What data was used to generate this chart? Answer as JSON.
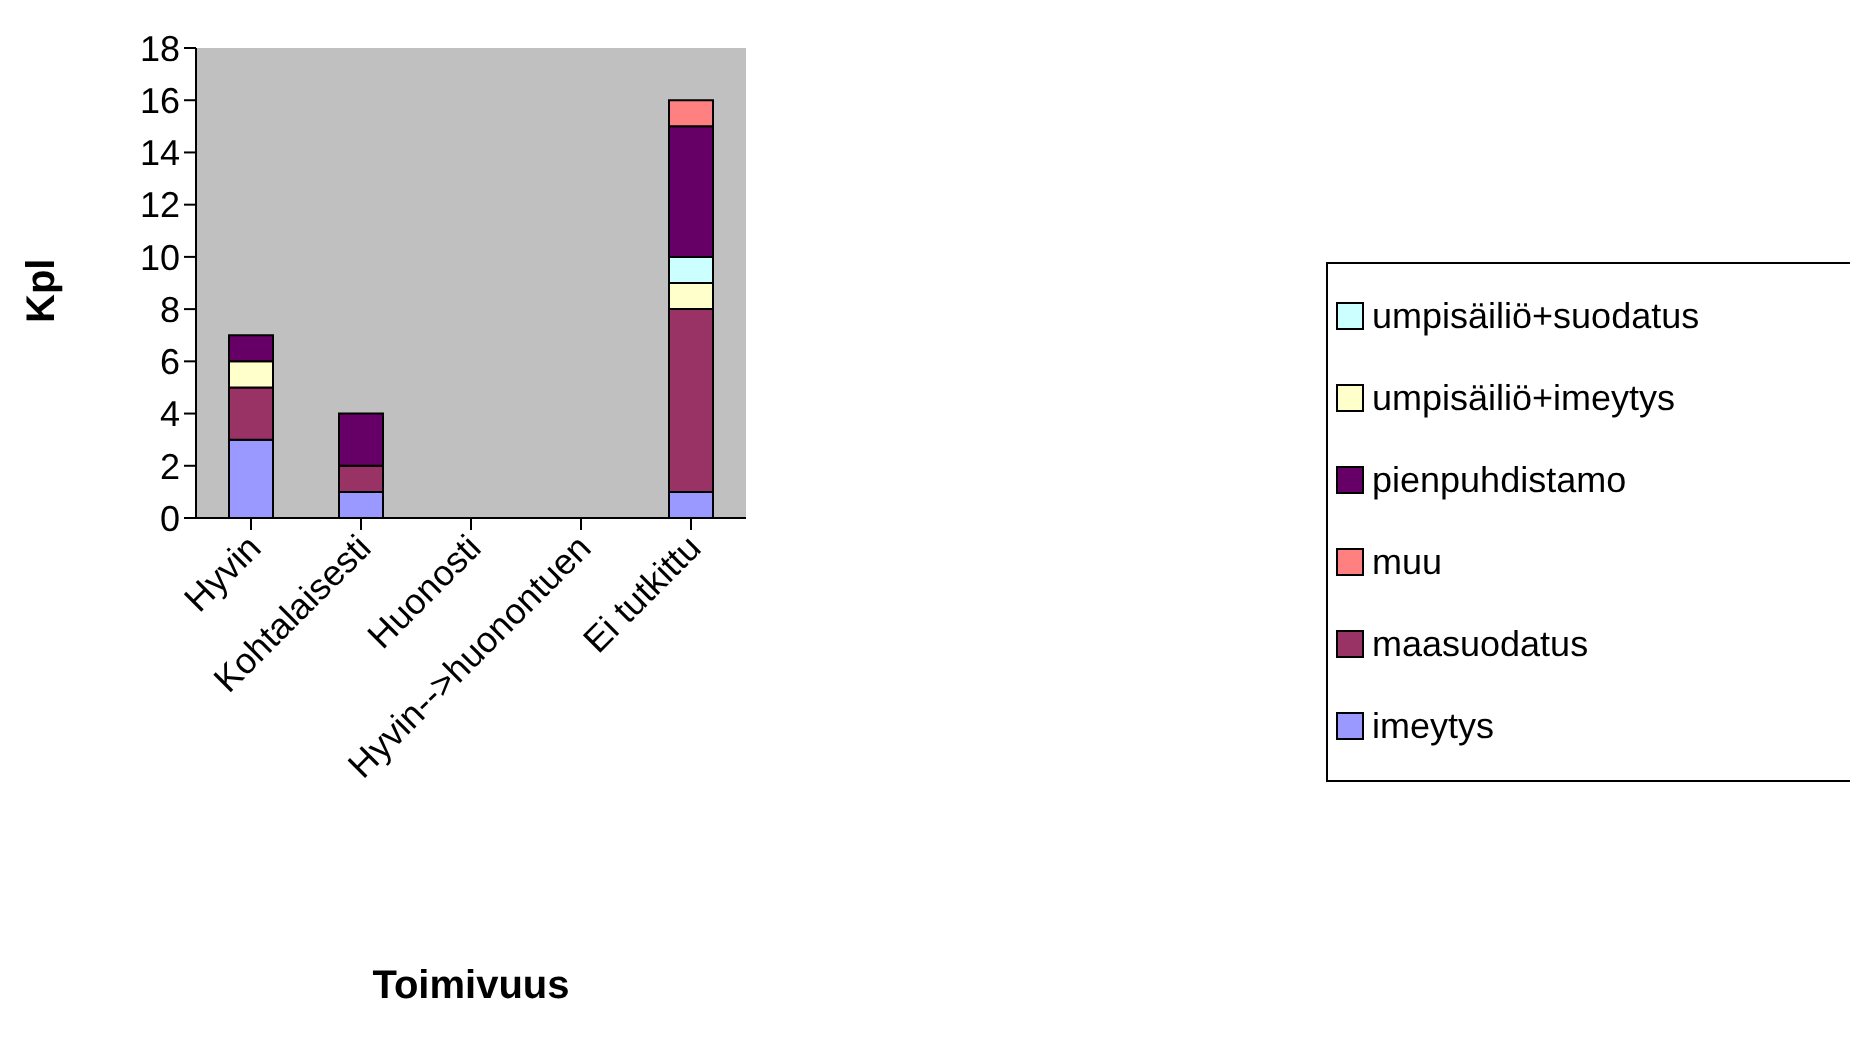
{
  "chart_data": {
    "type": "bar",
    "stacked": true,
    "xlabel": "Toimivuus",
    "ylabel": "Kpl",
    "categories": [
      "Hyvin",
      "Kohtalaisesti",
      "Huonosti",
      "Hyvin-->huonontuen",
      "Ei tutkittu"
    ],
    "series": [
      {
        "name": "imeytys",
        "color": "#9999ff",
        "values": [
          3,
          1,
          0,
          0,
          1
        ]
      },
      {
        "name": "maasuodatus",
        "color": "#993366",
        "values": [
          2,
          1,
          0,
          0,
          7
        ]
      },
      {
        "name": "umpisäiliö+imeytys",
        "color": "#ffffcc",
        "values": [
          1,
          0,
          0,
          0,
          1
        ]
      },
      {
        "name": "umpisäiliö+suodatus",
        "color": "#ccffff",
        "values": [
          0,
          0,
          0,
          0,
          1
        ]
      },
      {
        "name": "pienpuhdistamo",
        "color": "#660066",
        "values": [
          1,
          2,
          0,
          0,
          5
        ]
      },
      {
        "name": "muu",
        "color": "#ff8080",
        "values": [
          0,
          0,
          0,
          0,
          1
        ]
      }
    ],
    "ylim": [
      0,
      18
    ],
    "yticks": [
      0,
      2,
      4,
      6,
      8,
      10,
      12,
      14,
      16,
      18
    ],
    "legend": "right"
  }
}
